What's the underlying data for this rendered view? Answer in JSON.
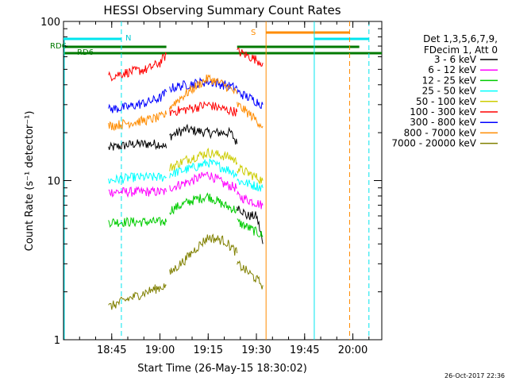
{
  "chart_data": {
    "type": "line",
    "title": "HESSI Observing Summary Count Rates",
    "xlabel": "Start Time (26-May-15 18:30:02)",
    "ylabel": "Count Rate (s⁻¹ detector⁻¹)",
    "y_scale": "log",
    "xlim": [
      "18:30",
      "20:09"
    ],
    "ylim": [
      1,
      100
    ],
    "x_tick_labels": [
      "18:45",
      "19:00",
      "19:15",
      "19:30",
      "19:45",
      "20:00"
    ],
    "y_tick_labels": [
      "1",
      "10",
      "100"
    ],
    "footer_timestamp": "26-Oct-2017 22:36",
    "legend": {
      "header": [
        "Det 1,3,5,6,7,9,",
        "FDecim 1, Att 0"
      ],
      "placement": "top-right outside"
    },
    "flags": [
      {
        "label": "RD6",
        "color": "#007a00"
      },
      {
        "label": "N",
        "color": "#00e5ee"
      },
      {
        "label": "S",
        "color": "#ff8c00"
      }
    ],
    "series": [
      {
        "name": "3 - 6 keV",
        "color": "#000000",
        "segments": [
          [
            [
              "18:44",
              16
            ],
            [
              "18:52",
              17
            ],
            [
              "19:00",
              17
            ],
            [
              "19:02",
              16
            ]
          ],
          [
            [
              "19:03",
              19
            ],
            [
              "19:08",
              21
            ],
            [
              "19:15",
              20
            ],
            [
              "19:22",
              20
            ],
            [
              "19:24",
              17
            ]
          ],
          [
            [
              "19:24",
              7
            ],
            [
              "19:27",
              6
            ],
            [
              "19:30",
              6
            ],
            [
              "19:32",
              4
            ]
          ]
        ]
      },
      {
        "name": "6 - 12 keV",
        "color": "#ff00ff",
        "segments": [
          [
            [
              "18:44",
              8.5
            ],
            [
              "18:52",
              8.5
            ],
            [
              "19:02",
              8.5
            ]
          ],
          [
            [
              "19:03",
              9
            ],
            [
              "19:10",
              10
            ],
            [
              "19:15",
              11
            ],
            [
              "19:20",
              9.5
            ],
            [
              "19:24",
              9
            ]
          ],
          [
            [
              "19:24",
              8
            ],
            [
              "19:28",
              7.5
            ],
            [
              "19:32",
              7
            ]
          ]
        ]
      },
      {
        "name": "12 - 25 keV",
        "color": "#00cc00",
        "segments": [
          [
            [
              "18:44",
              5.5
            ],
            [
              "18:52",
              5.5
            ],
            [
              "19:02",
              5.5
            ]
          ],
          [
            [
              "19:03",
              6.5
            ],
            [
              "19:10",
              7.5
            ],
            [
              "19:15",
              8
            ],
            [
              "19:20",
              7
            ],
            [
              "19:24",
              6.5
            ]
          ],
          [
            [
              "19:24",
              5.5
            ],
            [
              "19:28",
              5
            ],
            [
              "19:32",
              4.5
            ]
          ]
        ]
      },
      {
        "name": "25 - 50 keV",
        "color": "#00ffff",
        "segments": [
          [
            [
              "18:44",
              10
            ],
            [
              "18:52",
              10.5
            ],
            [
              "19:02",
              10.5
            ]
          ],
          [
            [
              "19:03",
              11
            ],
            [
              "19:10",
              12
            ],
            [
              "19:15",
              13
            ],
            [
              "19:20",
              12
            ],
            [
              "19:24",
              11
            ]
          ],
          [
            [
              "19:24",
              10
            ],
            [
              "19:28",
              9.5
            ],
            [
              "19:32",
              9
            ]
          ]
        ]
      },
      {
        "name": "50 - 100 keV",
        "color": "#cccc00",
        "segments": [
          [
            [
              "19:03",
              12
            ],
            [
              "19:08",
              13.5
            ],
            [
              "19:15",
              15
            ],
            [
              "19:22",
              14
            ],
            [
              "19:24",
              13
            ]
          ],
          [
            [
              "19:24",
              12
            ],
            [
              "19:28",
              11
            ],
            [
              "19:32",
              10
            ]
          ]
        ]
      },
      {
        "name": "100 - 300 keV",
        "color": "#ff0000",
        "segments": [
          [
            [
              "18:44",
              45
            ],
            [
              "18:50",
              48
            ],
            [
              "18:56",
              50
            ],
            [
              "19:00",
              55
            ],
            [
              "19:02",
              62
            ]
          ],
          [
            [
              "19:03",
              27
            ],
            [
              "19:08",
              28
            ],
            [
              "19:15",
              30
            ],
            [
              "19:20",
              28
            ],
            [
              "19:24",
              27
            ]
          ],
          [
            [
              "19:24",
              65
            ],
            [
              "19:28",
              60
            ],
            [
              "19:32",
              55
            ]
          ]
        ]
      },
      {
        "name": "300 - 800 keV",
        "color": "#0000ff",
        "segments": [
          [
            [
              "18:44",
              28
            ],
            [
              "18:50",
              29
            ],
            [
              "18:56",
              31
            ],
            [
              "19:00",
              33
            ],
            [
              "19:02",
              36
            ]
          ],
          [
            [
              "19:03",
              38
            ],
            [
              "19:08",
              40
            ],
            [
              "19:15",
              42
            ],
            [
              "19:20",
              40
            ],
            [
              "19:24",
              38
            ]
          ],
          [
            [
              "19:24",
              36
            ],
            [
              "19:28",
              33
            ],
            [
              "19:32",
              30
            ]
          ]
        ]
      },
      {
        "name": "800 - 7000 keV",
        "color": "#ff8c00",
        "segments": [
          [
            [
              "18:44",
              22
            ],
            [
              "18:50",
              23
            ],
            [
              "18:56",
              24
            ],
            [
              "19:00",
              25
            ],
            [
              "19:02",
              26
            ]
          ],
          [
            [
              "19:03",
              29
            ],
            [
              "19:08",
              35
            ],
            [
              "19:15",
              44
            ],
            [
              "19:20",
              40
            ],
            [
              "19:24",
              35
            ]
          ],
          [
            [
              "19:24",
              30
            ],
            [
              "19:28",
              26
            ],
            [
              "19:32",
              22
            ]
          ]
        ]
      },
      {
        "name": "7000 - 20000 keV",
        "color": "#808000",
        "segments": [
          [
            [
              "18:44",
              1.6
            ],
            [
              "18:50",
              1.8
            ],
            [
              "18:56",
              2.0
            ],
            [
              "19:02",
              2.2
            ]
          ],
          [
            [
              "19:03",
              2.6
            ],
            [
              "19:08",
              3.2
            ],
            [
              "19:15",
              4.4
            ],
            [
              "19:20",
              4.2
            ],
            [
              "19:24",
              3.5
            ]
          ],
          [
            [
              "19:24",
              3.0
            ],
            [
              "19:28",
              2.6
            ],
            [
              "19:32",
              2.2
            ]
          ]
        ]
      }
    ]
  }
}
